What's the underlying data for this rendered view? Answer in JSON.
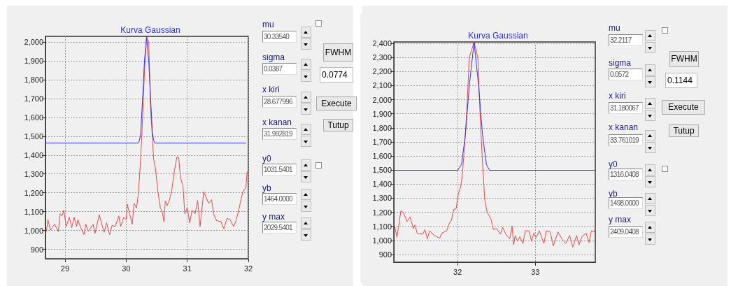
{
  "chart_data": [
    {
      "type": "line",
      "title": "Kurva Gaussian",
      "xlim": [
        28.68,
        32
      ],
      "ylim": [
        850,
        2030
      ],
      "xticks": [
        29,
        30,
        31,
        32
      ],
      "yticks": [
        {
          "value": 900,
          "label": "900"
        },
        {
          "value": 1000,
          "label": "1,000"
        },
        {
          "value": 1100,
          "label": "1,100"
        },
        {
          "value": 1200,
          "label": "1,200"
        },
        {
          "value": 1300,
          "label": "1,300"
        },
        {
          "value": 1400,
          "label": "1,400"
        },
        {
          "value": 1500,
          "label": "1,500"
        },
        {
          "value": 1600,
          "label": "1,600"
        },
        {
          "value": 1700,
          "label": "1,700"
        },
        {
          "value": 1800,
          "label": "1,800"
        },
        {
          "value": 1900,
          "label": "1,900"
        },
        {
          "value": 2000,
          "label": "2,000"
        }
      ],
      "grid": true,
      "marker": "none",
      "line_style": "solid",
      "series": [
        {
          "color": "#f04848",
          "x": [
            28.695,
            28.72,
            28.76,
            28.83,
            28.89,
            28.92,
            28.95,
            28.98,
            29.02,
            29.07,
            29.11,
            29.15,
            29.19,
            29.21,
            29.25,
            29.31,
            29.34,
            29.38,
            29.46,
            29.49,
            29.56,
            29.64,
            29.68,
            29.73,
            29.77,
            29.82,
            29.88,
            29.91,
            29.96,
            30.0,
            30.02,
            30.06,
            30.1,
            30.13,
            30.17,
            30.2,
            30.23,
            30.26,
            30.3,
            30.335,
            30.37,
            30.4,
            30.45,
            30.48,
            30.52,
            30.56,
            30.59,
            30.62,
            30.64,
            30.67,
            30.71,
            30.75,
            30.79,
            30.83,
            30.86,
            30.89,
            30.93,
            30.96,
            31.0,
            31.04,
            31.08,
            31.13,
            31.17,
            31.21,
            31.27,
            31.35,
            31.4,
            31.43,
            31.48,
            31.55,
            31.6,
            31.65,
            31.7,
            31.76,
            31.8,
            31.85,
            31.91,
            31.96,
            31.98
          ],
          "values": [
            996,
            1058,
            1002,
            1033,
            994,
            1089,
            1077,
            1107,
            1021,
            1070,
            1015,
            1070,
            1021,
            1058,
            1021,
            978,
            1033,
            996,
            1033,
            984,
            1083,
            990,
            1040,
            978,
            1027,
            1021,
            1077,
            1021,
            1070,
            1058,
            1138,
            1083,
            1033,
            1144,
            1120,
            1194,
            1342,
            1527,
            1836,
            2029,
            2000,
            1651,
            1379,
            1330,
            1206,
            1120,
            1101,
            1046,
            1157,
            1132,
            1163,
            1219,
            1317,
            1389,
            1389,
            1280,
            1237,
            1089,
            1120,
            1040,
            1107,
            1089,
            1159,
            1021,
            1206,
            1144,
            1163,
            1089,
            1052,
            1048,
            1009,
            1064,
            1058,
            1021,
            1052,
            1120,
            1206,
            1225,
            1311
          ]
        },
        {
          "color": "#3434f0",
          "x": [
            28.695,
            30.2,
            30.22,
            30.24,
            30.27,
            30.3,
            30.335,
            30.37,
            30.4,
            30.43,
            30.45,
            30.47,
            31.96
          ],
          "values": [
            1464,
            1464,
            1480,
            1520,
            1700,
            1900,
            2029,
            1900,
            1700,
            1520,
            1480,
            1464,
            1464
          ]
        }
      ],
      "annotations": [
        "mu",
        "30.33540",
        "sigma",
        "0.0387",
        "x kiri",
        "28.677996",
        "x kanan",
        "31.992819",
        "y0",
        "1031.5401",
        "yb",
        "1464.0000",
        "y max",
        "2029.5401",
        "FWHM",
        "0.0774",
        "Execute",
        "Tutup"
      ]
    },
    {
      "type": "line",
      "title": "Kurva Gaussian",
      "xlim": [
        31.18,
        33.77
      ],
      "ylim": [
        845,
        2410
      ],
      "xticks": [
        32,
        33
      ],
      "yticks": [
        {
          "value": 900,
          "label": "900"
        },
        {
          "value": 1000,
          "label": "1,000"
        },
        {
          "value": 1100,
          "label": "1,100"
        },
        {
          "value": 1200,
          "label": "1,200"
        },
        {
          "value": 1300,
          "label": "1,300"
        },
        {
          "value": 1400,
          "label": "1,400"
        },
        {
          "value": 1500,
          "label": "1,500"
        },
        {
          "value": 1600,
          "label": "1,600"
        },
        {
          "value": 1700,
          "label": "1,700"
        },
        {
          "value": 1800,
          "label": "1,800"
        },
        {
          "value": 1900,
          "label": "1,900"
        },
        {
          "value": 2000,
          "label": "2,000"
        },
        {
          "value": 2100,
          "label": "2,100"
        },
        {
          "value": 2200,
          "label": "2,200"
        },
        {
          "value": 2300,
          "label": "2,300"
        },
        {
          "value": 2400,
          "label": "2,400"
        }
      ],
      "grid": true,
      "marker": "none",
      "line_style": "solid",
      "series": [
        {
          "color": "#f04848",
          "x": [
            31.19,
            31.22,
            31.27,
            31.3,
            31.35,
            31.39,
            31.43,
            31.45,
            31.48,
            31.55,
            31.58,
            31.61,
            31.64,
            31.7,
            31.77,
            31.8,
            31.86,
            31.89,
            31.92,
            31.95,
            31.98,
            32.01,
            32.04,
            32.06,
            32.09,
            32.12,
            32.15,
            32.2117,
            32.26,
            32.29,
            32.32,
            32.35,
            32.38,
            32.43,
            32.46,
            32.5,
            32.55,
            32.58,
            32.62,
            32.67,
            32.7,
            32.72,
            32.74,
            32.77,
            32.8,
            32.84,
            32.87,
            32.92,
            32.95,
            32.98,
            33.01,
            33.05,
            33.11,
            33.14,
            33.19,
            33.23,
            33.29,
            33.35,
            33.39,
            33.44,
            33.48,
            33.53,
            33.56,
            33.6,
            33.65,
            33.69,
            33.72,
            33.75,
            33.77
          ],
          "values": [
            1101,
            1022,
            1209,
            1200,
            1134,
            1167,
            1085,
            1110,
            1052,
            1044,
            1077,
            1011,
            1068,
            1035,
            1016,
            1052,
            1068,
            1118,
            1143,
            1220,
            1225,
            1332,
            1382,
            1464,
            1679,
            1943,
            2300,
            2409,
            2300,
            1877,
            1547,
            1283,
            1200,
            1151,
            1077,
            1085,
            1044,
            1093,
            1044,
            1011,
            1101,
            969,
            1035,
            994,
            1027,
            978,
            1068,
            1068,
            994,
            1052,
            1019,
            1068,
            978,
            1068,
            1060,
            961,
            1060,
            1002,
            978,
            1035,
            953,
            1035,
            969,
            1027,
            1052,
            986,
            1068,
            1060,
            1085
          ]
        },
        {
          "color": "#3434f0",
          "x": [
            31.18,
            32.0,
            32.05,
            32.1,
            32.15,
            32.2117,
            32.27,
            32.32,
            32.37,
            32.41,
            33.76
          ],
          "values": [
            1498,
            1498,
            1540,
            1750,
            2100,
            2409,
            2100,
            1750,
            1540,
            1498,
            1498
          ]
        }
      ],
      "annotations": [
        "mu",
        "32.2117",
        "sigma",
        "0.0572",
        "x kiri",
        "31.180067",
        "x kanan",
        "33.761019",
        "y0",
        "1316.0408",
        "yb",
        "1498.0000",
        "y max",
        "2409.0408",
        "FWHM",
        "0.1144",
        "Execute",
        "Tutup"
      ]
    }
  ]
}
